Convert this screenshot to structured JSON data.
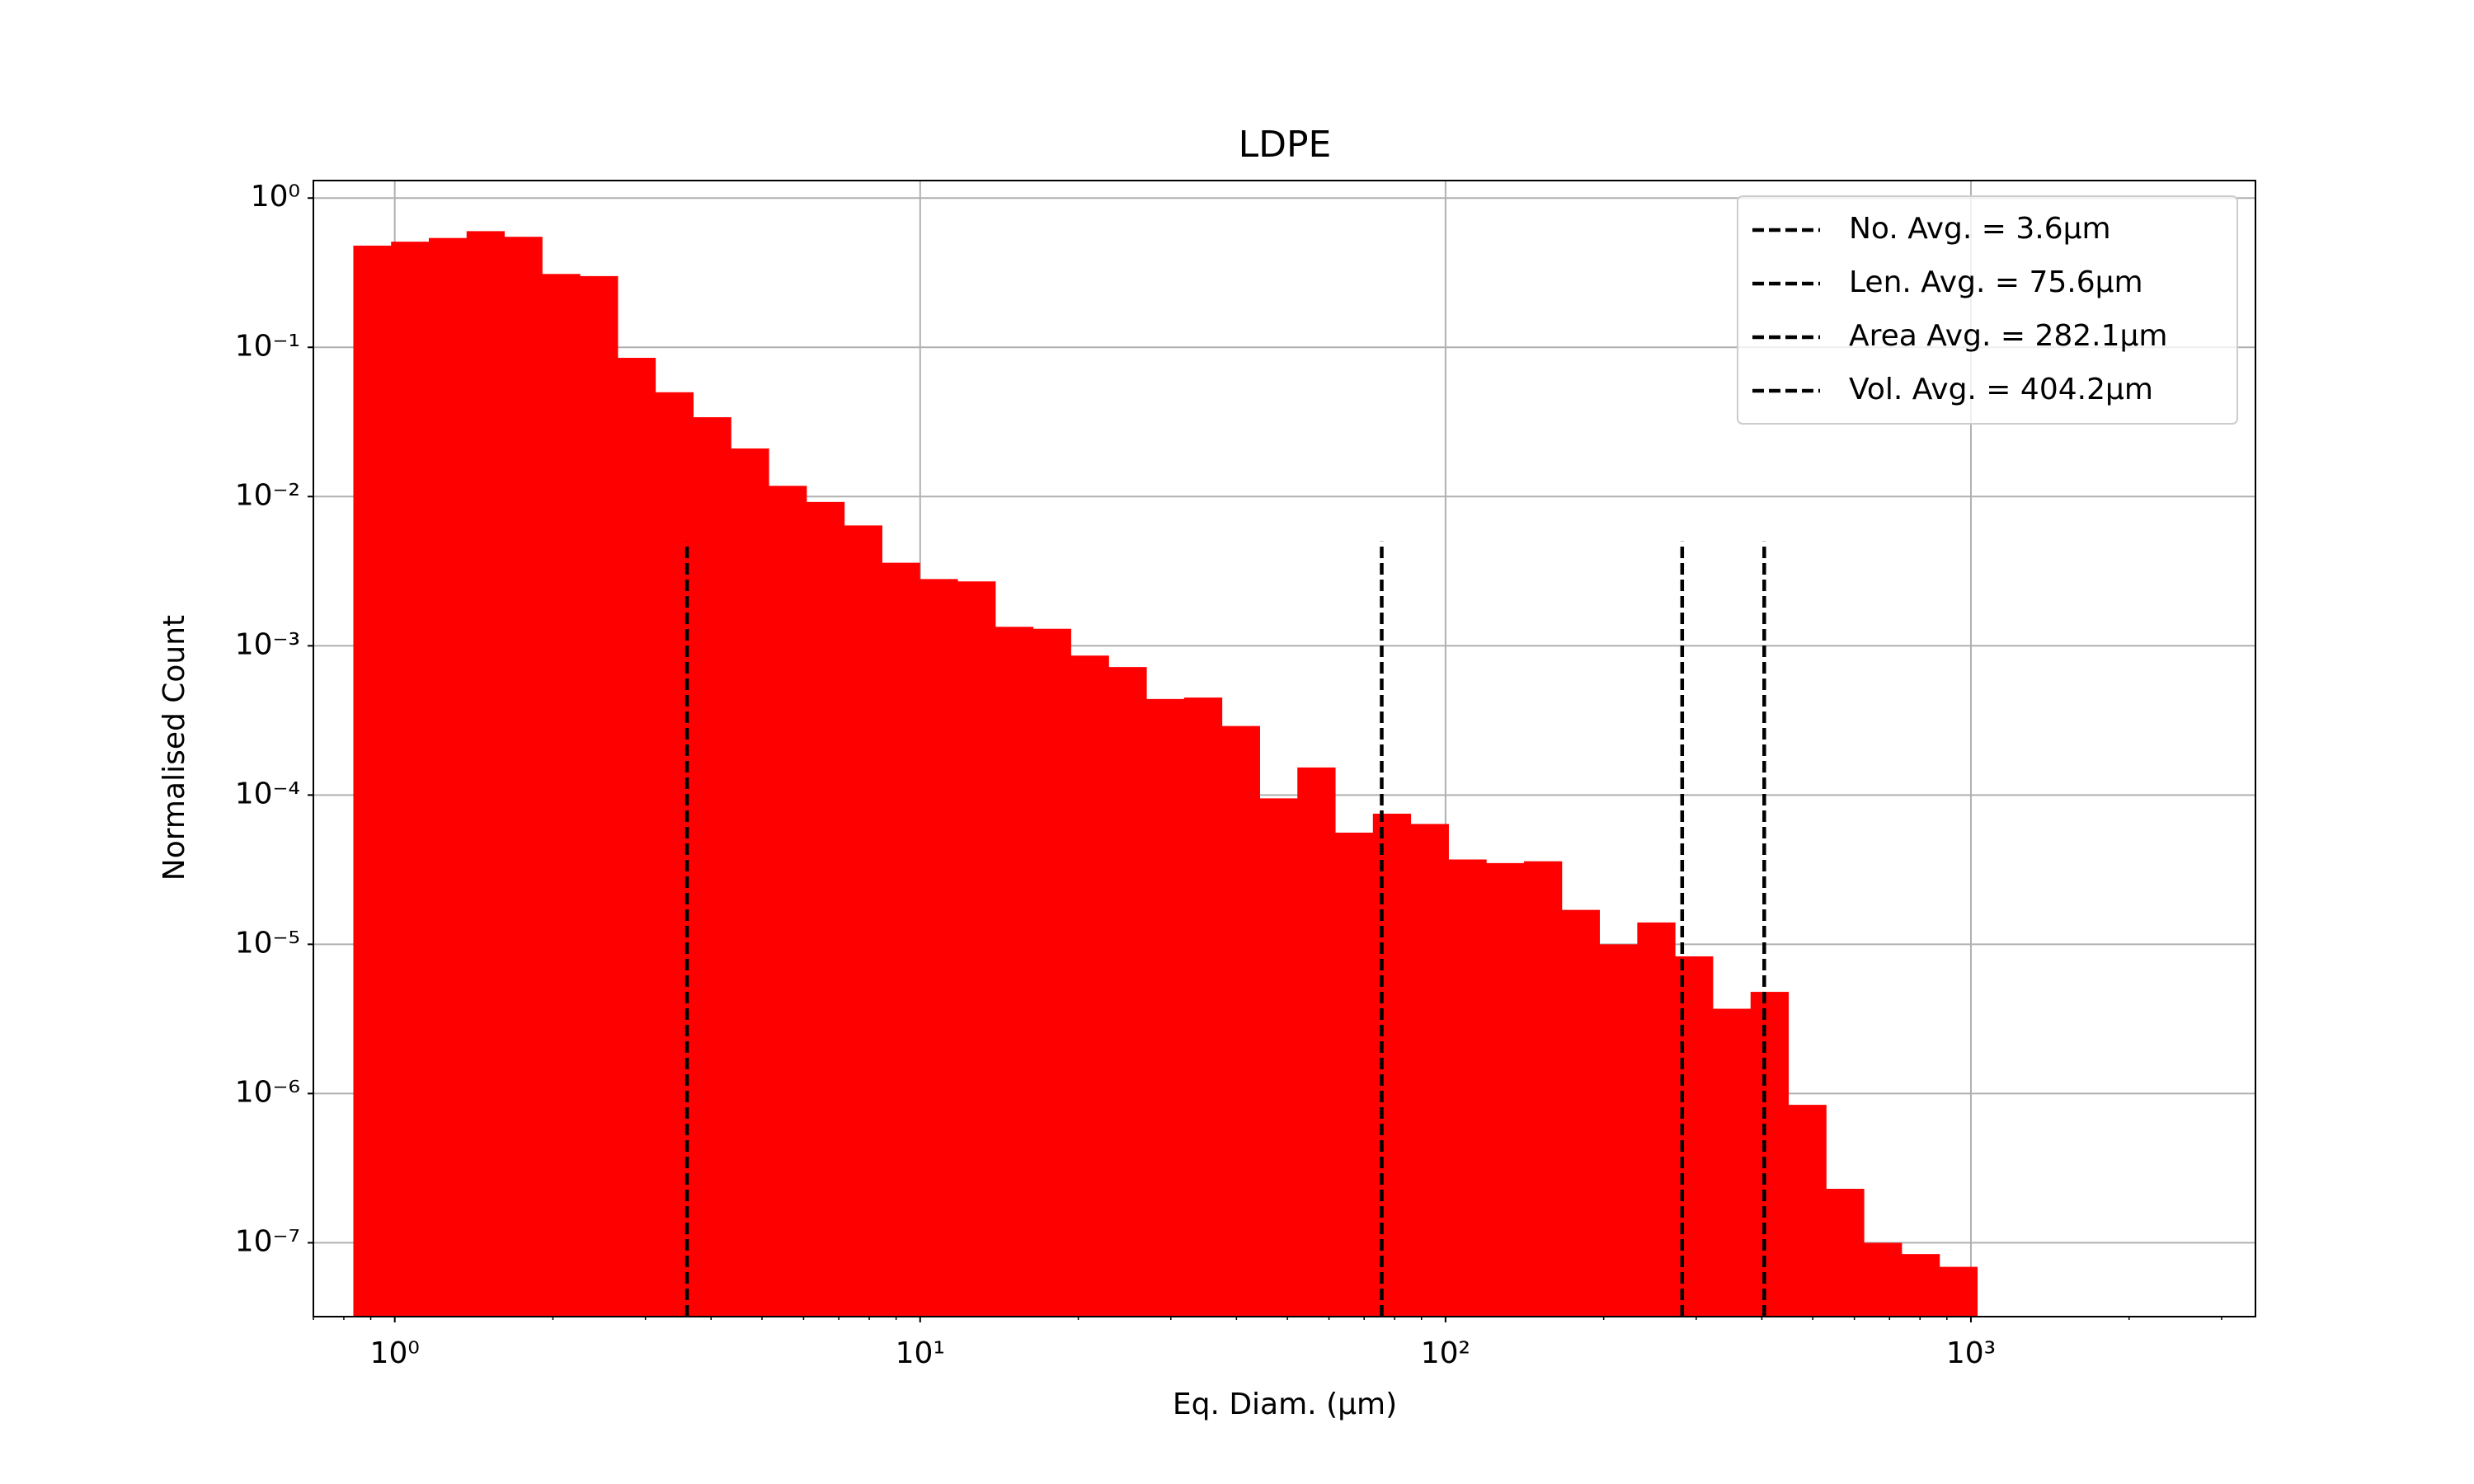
{
  "chart_data": {
    "type": "histogram",
    "title": "LDPE",
    "x_label": "Eq. Diam. (µm)",
    "y_label": "Normalised Count",
    "xscale": "log",
    "yscale": "log",
    "grid": true,
    "legend_position": "upper right",
    "color": "#ff0000",
    "bins": [
      0.834,
      0.984,
      1.161,
      1.37,
      1.616,
      1.907,
      2.251,
      2.656,
      3.133,
      3.698,
      4.363,
      5.149,
      6.075,
      7.169,
      8.458,
      9.98,
      11.78,
      13.9,
      16.4,
      19.35,
      22.84,
      26.95,
      31.8,
      37.52,
      44.28,
      52.24,
      61.65,
      72.74,
      85.83,
      101.3,
      119.5,
      141.0,
      166.4,
      196.3,
      231.7,
      273.4,
      322.6,
      380.7,
      449.2,
      530.0,
      625.4,
      738.0,
      871.0,
      1028
    ],
    "counts": [
      0.48,
      0.51,
      0.54,
      0.6,
      0.55,
      0.31,
      0.3,
      0.085,
      0.05,
      0.034,
      0.021,
      0.0118,
      0.0092,
      0.0064,
      0.0036,
      0.0028,
      0.0027,
      0.00134,
      0.0013,
      0.00086,
      0.00072,
      0.00044,
      0.00045,
      0.00029,
      9.5e-05,
      0.000153,
      5.6e-05,
      7.5e-05,
      6.4e-05,
      3.7e-05,
      3.5e-05,
      3.6e-05,
      1.7e-05,
      1e-05,
      1.4e-05,
      8.3e-06,
      3.7e-06,
      4.8e-06,
      8.4e-07,
      2.3e-07,
      1e-07,
      8.4e-08,
      6.9e-08
    ],
    "vlines": [
      {
        "name": "No. Avg. = 3.6µm",
        "x": 3.6,
        "color": "#000000"
      },
      {
        "name": "Len. Avg. = 75.6µm",
        "x": 75.6,
        "color": "#000000"
      },
      {
        "name": "Area Avg. = 282.1µm",
        "x": 282.1,
        "color": "#000000"
      },
      {
        "name": "Vol. Avg. = 404.2µm",
        "x": 404.2,
        "color": "#000000"
      }
    ],
    "vline_ymax": 0.005,
    "xlim": [
      0.7,
      3480
    ],
    "ylim": [
      3.2e-08,
      1.31
    ],
    "xticks": [
      {
        "value": 1,
        "label": "10⁰"
      },
      {
        "value": 10,
        "label": "10¹"
      },
      {
        "value": 100,
        "label": "10²"
      },
      {
        "value": 1000,
        "label": "10³"
      }
    ],
    "xminorticks": [
      0.7,
      0.8,
      0.9,
      2,
      3,
      4,
      5,
      6,
      7,
      8,
      9,
      20,
      30,
      40,
      50,
      60,
      70,
      80,
      90,
      200,
      300,
      400,
      500,
      600,
      700,
      800,
      900,
      2000,
      3000
    ],
    "yticks": [
      {
        "value": 1e-07,
        "label": "10⁻⁷"
      },
      {
        "value": 1e-06,
        "label": "10⁻⁶"
      },
      {
        "value": 1e-05,
        "label": "10⁻⁵"
      },
      {
        "value": 0.0001,
        "label": "10⁻⁴"
      },
      {
        "value": 0.001,
        "label": "10⁻³"
      },
      {
        "value": 0.01,
        "label": "10⁻²"
      },
      {
        "value": 0.1,
        "label": "10⁻¹"
      },
      {
        "value": 1,
        "label": "10⁰"
      }
    ]
  }
}
